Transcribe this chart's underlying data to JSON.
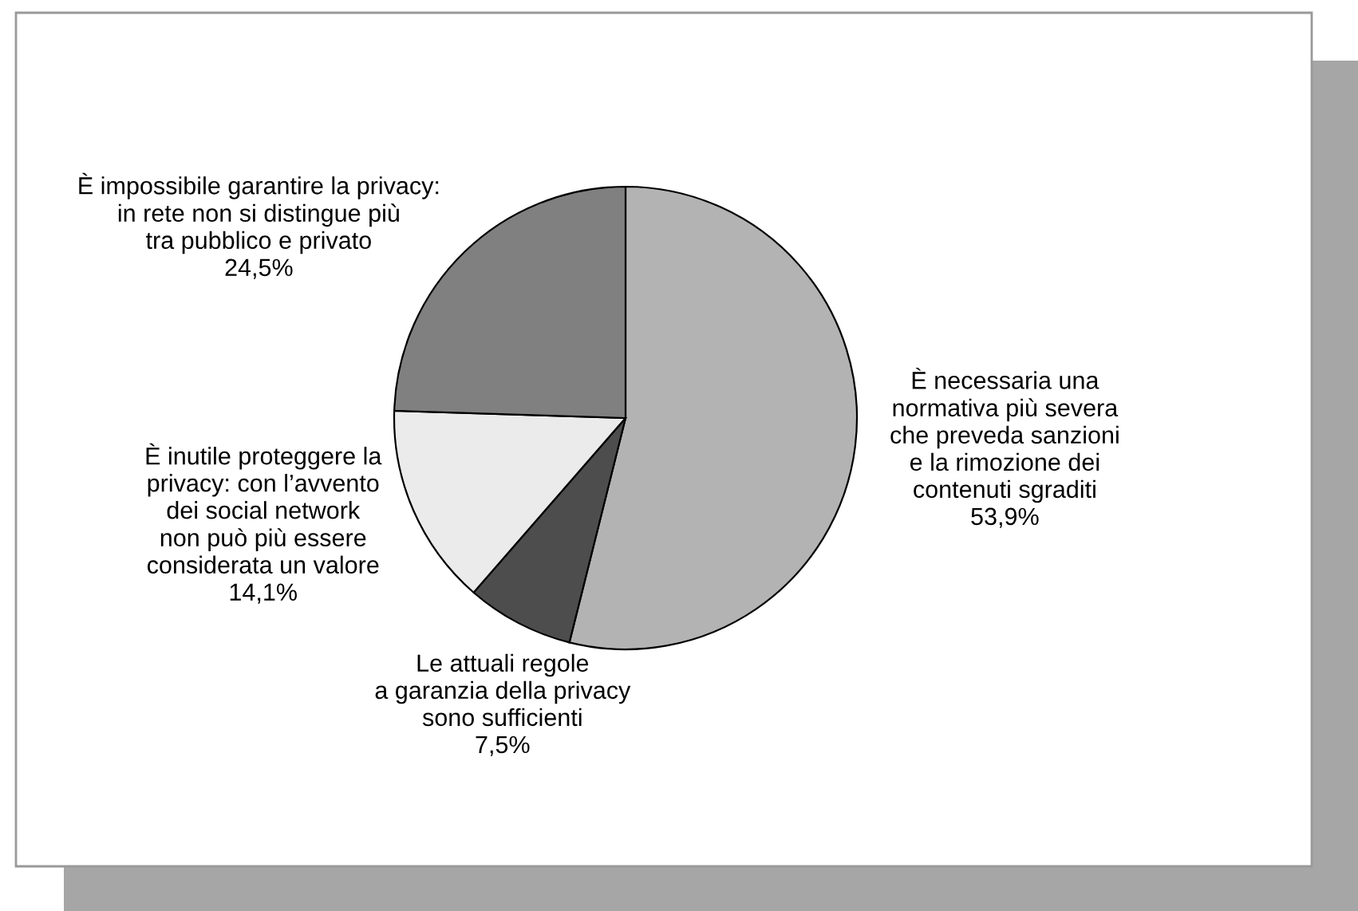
{
  "chart_data": {
    "type": "pie",
    "categories": [
      "È necessaria una\nnormativa più severa\nche preveda sanzioni\ne la rimozione dei\ncontenuti sgraditi",
      "Le attuali regole\na garanzia della privacy\nsono sufficienti",
      "È inutile proteggere la\nprivacy: con l’avvento\ndei social network\nnon può più essere\nconsiderata un valore",
      "È impossibile garantire la privacy:\nin rete non si distingue più\ntra pubblico e privato"
    ],
    "values": [
      53.9,
      7.5,
      14.1,
      24.5
    ],
    "value_labels": [
      "53,9%",
      "7,5%",
      "14,1%",
      "24,5%"
    ],
    "colors": [
      "#b3b3b3",
      "#4d4d4d",
      "#ebebeb",
      "#808080"
    ]
  }
}
